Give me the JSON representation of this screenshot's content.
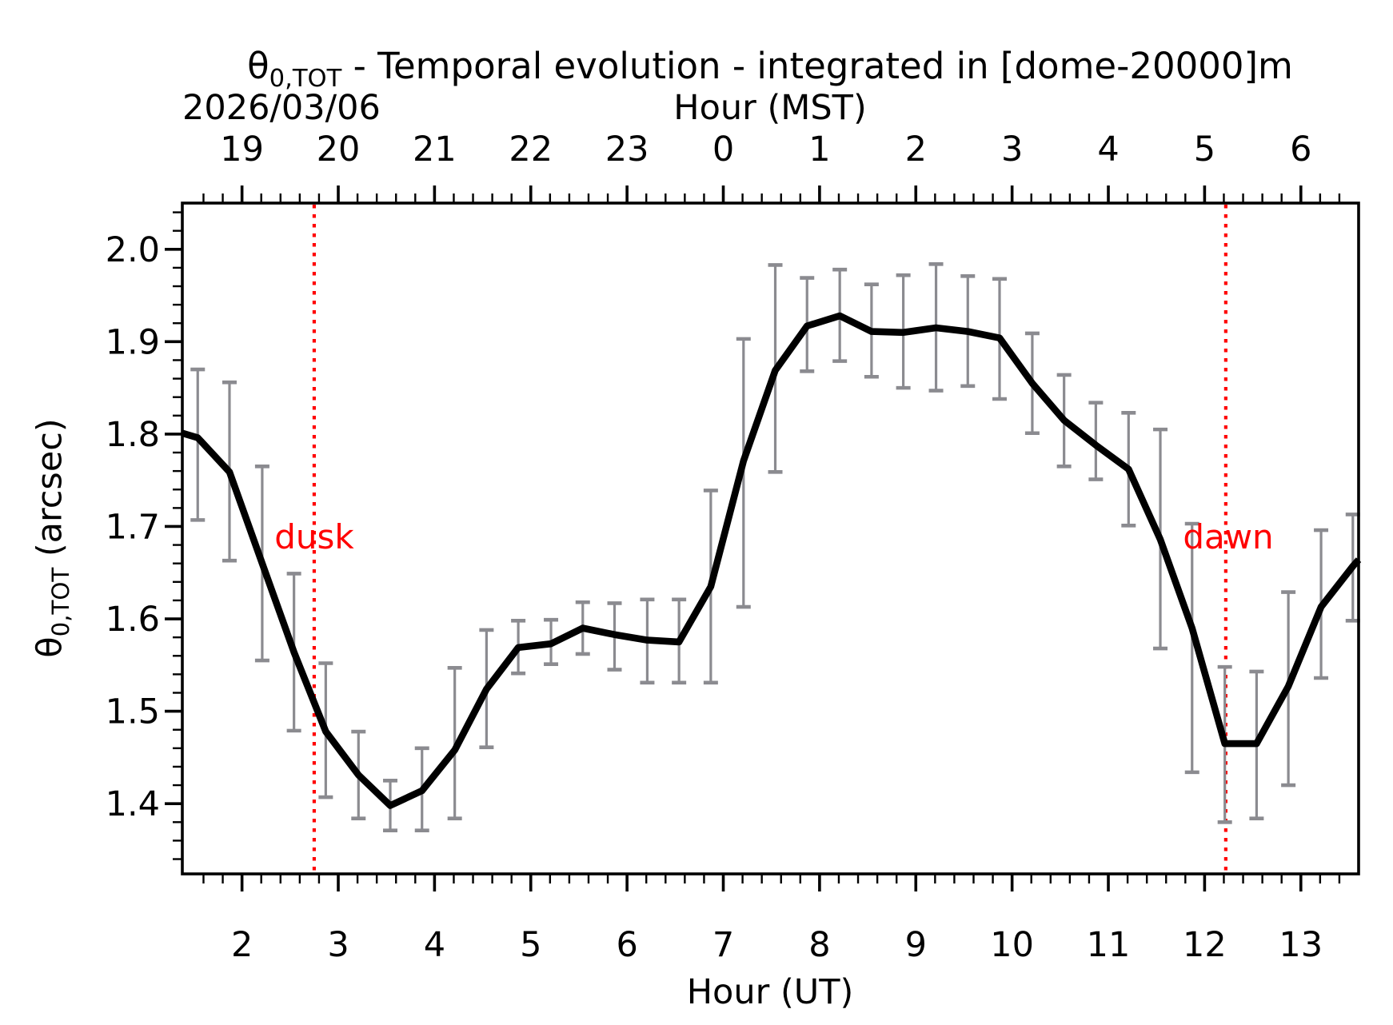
{
  "figure": {
    "title": {
      "theta": "θ",
      "subscript": "0,TOT",
      "rest": " - Temporal evolution - integrated in [dome-20000]m"
    },
    "date_label": "2026/03/06",
    "top_axis_label": "Hour (MST)",
    "bottom_axis_label": "Hour (UT)",
    "y_axis_label": {
      "theta": "θ",
      "subscript": "0,TOT",
      "rest": " (arcsec)"
    }
  },
  "chart_data": {
    "type": "line",
    "title": "θ0,TOT - Temporal evolution - integrated in [dome-20000]m",
    "date": "2026/03/06",
    "xlabel": "Hour (UT)",
    "xlabel_top": "Hour (MST)",
    "ylabel": "θ0,TOT (arcsec)",
    "xlim": [
      1.38,
      13.6
    ],
    "ylim": [
      1.324,
      2.05
    ],
    "grid": false,
    "legend": "none",
    "x_major_ticks_ut": [
      2,
      3,
      4,
      5,
      6,
      7,
      8,
      9,
      10,
      11,
      12,
      13
    ],
    "x_major_tick_labels_mst": [
      "19",
      "20",
      "21",
      "22",
      "23",
      "0",
      "1",
      "2",
      "3",
      "4",
      "5",
      "6"
    ],
    "x_minor_step": 0.2,
    "y_major_ticks": [
      1.4,
      1.5,
      1.6,
      1.7,
      1.8,
      1.9,
      2.0
    ],
    "y_minor_step": 0.02,
    "annotations": [
      {
        "label": "dusk",
        "x": 2.75,
        "color": "#ff0000"
      },
      {
        "label": "dawn",
        "x": 12.22,
        "color": "#ff0000"
      }
    ],
    "colors": {
      "line": "#000000",
      "errorbar": "#8b8b90",
      "vline": "#ff0000"
    },
    "series": [
      {
        "name": "theta0_TOT",
        "x": [
          1.54,
          1.87,
          2.21,
          2.54,
          2.87,
          3.21,
          3.54,
          3.87,
          4.21,
          4.54,
          4.87,
          5.21,
          5.54,
          5.87,
          6.21,
          6.54,
          6.87,
          7.21,
          7.54,
          7.87,
          8.21,
          8.54,
          8.87,
          9.21,
          9.54,
          9.87,
          10.21,
          10.54,
          10.87,
          11.21,
          11.54,
          11.87,
          12.21,
          12.54,
          12.87,
          13.21,
          13.54
        ],
        "y": [
          1.796,
          1.759,
          1.66,
          1.564,
          1.478,
          1.431,
          1.398,
          1.414,
          1.458,
          1.524,
          1.569,
          1.573,
          1.59,
          1.583,
          1.577,
          1.575,
          1.635,
          1.771,
          1.869,
          1.917,
          1.928,
          1.911,
          1.91,
          1.915,
          1.911,
          1.904,
          1.855,
          1.815,
          1.788,
          1.762,
          1.686,
          1.59,
          1.465,
          1.465,
          1.527,
          1.613,
          1.657
        ],
        "err_low": [
          1.707,
          1.663,
          1.555,
          1.479,
          1.407,
          1.384,
          1.371,
          1.371,
          1.384,
          1.461,
          1.541,
          1.551,
          1.562,
          1.545,
          1.531,
          1.531,
          1.531,
          1.613,
          1.759,
          1.868,
          1.879,
          1.862,
          1.85,
          1.847,
          1.852,
          1.838,
          1.801,
          1.765,
          1.751,
          1.701,
          1.568,
          1.434,
          1.38,
          1.384,
          1.42,
          1.536,
          1.598
        ],
        "err_high": [
          1.87,
          1.856,
          1.765,
          1.649,
          1.552,
          1.478,
          1.425,
          1.46,
          1.547,
          1.588,
          1.598,
          1.599,
          1.618,
          1.617,
          1.621,
          1.621,
          1.739,
          1.903,
          1.983,
          1.969,
          1.978,
          1.962,
          1.972,
          1.984,
          1.971,
          1.968,
          1.909,
          1.864,
          1.834,
          1.823,
          1.805,
          1.703,
          1.548,
          1.543,
          1.629,
          1.696,
          1.713
        ]
      }
    ],
    "line_clip_start": {
      "x": 1.38,
      "y": 1.801
    },
    "line_clip_end": {
      "x": 13.6,
      "y": 1.664
    }
  }
}
